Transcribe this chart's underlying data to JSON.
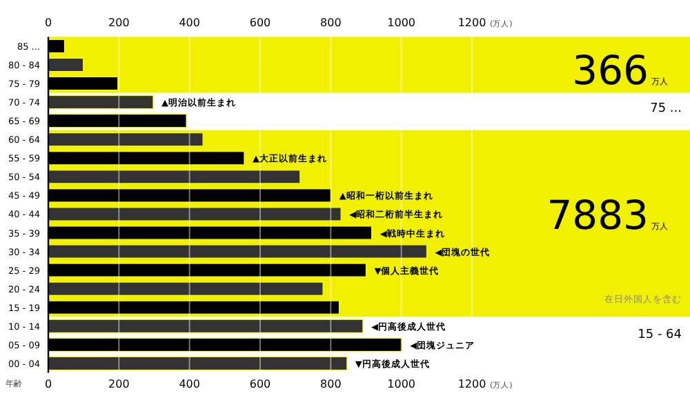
{
  "chart_data": {
    "type": "bar",
    "orientation": "horizontal",
    "categories": [
      "85 ...",
      "80 - 84",
      "75 - 79",
      "70 - 74",
      "65 - 69",
      "60 - 64",
      "55 - 59",
      "50 - 54",
      "45 - 49",
      "40 - 44",
      "35 - 39",
      "30 - 34",
      "25 - 29",
      "20 - 24",
      "15 - 19",
      "10 - 14",
      "05 - 09",
      "00 - 04"
    ],
    "values": [
      46,
      99,
      197,
      297,
      391,
      438,
      555,
      713,
      801,
      829,
      916,
      1072,
      900,
      778,
      824,
      891,
      1001,
      846
    ],
    "colors": [
      "#000000",
      "#333333",
      "#000000",
      "#333333",
      "#000000",
      "#333333",
      "#000000",
      "#333333",
      "#000000",
      "#333333",
      "#000000",
      "#333333",
      "#000000",
      "#333333",
      "#000000",
      "#333333",
      "#000000",
      "#333333"
    ],
    "xlim": [
      0,
      1200
    ],
    "xticks": [
      0,
      200,
      400,
      600,
      800,
      1000,
      1200
    ],
    "x2lim": [
      0,
      1200
    ],
    "x2ticks": [
      0,
      200,
      400,
      600,
      800,
      1000,
      1200
    ],
    "xlabel": "(万人)",
    "x2label": "(万人)",
    "ylabel": "年齢",
    "grid": "x",
    "bands": [
      {
        "axis": "y",
        "from": "85 ...",
        "to": "75 - 79",
        "color": "#f0f000"
      },
      {
        "axis": "y",
        "from": "60 - 64",
        "to": "15 - 19",
        "color": "#f0f000"
      }
    ],
    "annotations": [
      "▲明治以前生まれ",
      "▲大正以前生まれ",
      "▲昭和一桁以前生まれ",
      "◀昭和二桁前半生まれ",
      "◀戦時中生まれ",
      "◀団塊の世代",
      "▼個人主義世代",
      "◀円高後成人世代",
      "◀団塊ジュニア",
      "▼円高後成人世代",
      "366",
      "万人",
      "75 ...",
      "7883",
      "万人",
      "在日外国人を含む",
      "15 - 64"
    ]
  }
}
